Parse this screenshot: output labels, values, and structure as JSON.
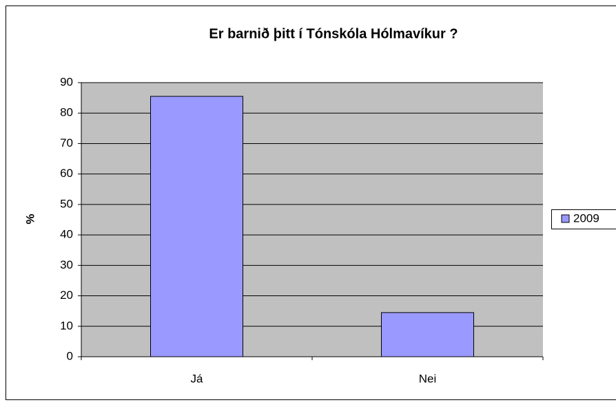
{
  "chart_data": {
    "type": "bar",
    "title": "Er barnið þitt í Tónskóla Hólmavíkur ?",
    "y_label": "%",
    "categories": [
      "Já",
      "Nei"
    ],
    "series": [
      {
        "name": "2009",
        "color": "#9999ff",
        "values": [
          85.5,
          14.5
        ]
      }
    ],
    "ylim": [
      0,
      90
    ],
    "yticks": [
      0,
      10,
      20,
      30,
      40,
      50,
      60,
      70,
      80,
      90
    ],
    "grid": true,
    "legend": "right"
  }
}
